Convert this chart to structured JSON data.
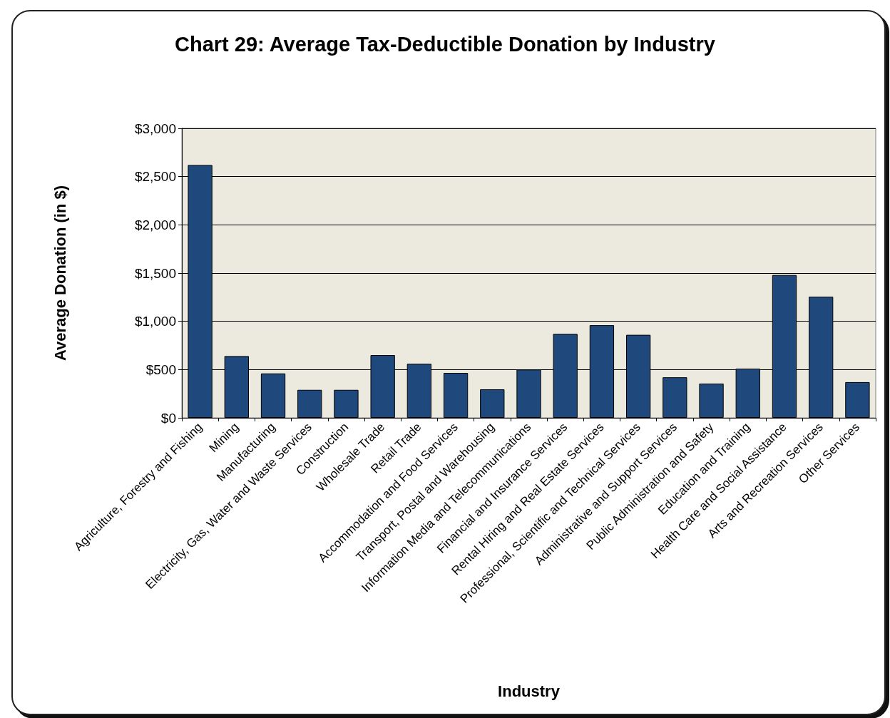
{
  "chart_data": {
    "type": "bar",
    "title": "Chart 29: Average Tax-Deductible Donation by Industry",
    "xlabel": "Industry",
    "ylabel": "Average Donation (in $)",
    "categories": [
      "Agriculture, Forestry and Fishing",
      "Mining",
      "Manufacturing",
      "Electricity, Gas, Water and Waste Services",
      "Construction",
      "Wholesale Trade",
      "Retail Trade",
      "Accommodation and Food Services",
      "Transport, Postal and Warehousing",
      "Information Media and Telecommunications",
      "Financial and Insurance Services",
      "Rental Hiring and Real Estate Services",
      "Professional, Scientific and Technical Services",
      "Administrative and Support Services",
      "Public Administration and Safety",
      "Education and Training",
      "Health Care and Social Assistance",
      "Arts and Recreation Services",
      "Other Services"
    ],
    "values": [
      2620,
      640,
      460,
      290,
      290,
      650,
      560,
      465,
      295,
      500,
      870,
      960,
      860,
      420,
      355,
      510,
      1480,
      1255,
      370
    ],
    "color": "#1f497d",
    "ylim": [
      0,
      3000
    ],
    "yticks": [
      {
        "value": 0,
        "label": "$0"
      },
      {
        "value": 500,
        "label": "$500"
      },
      {
        "value": 1000,
        "label": "$1,000"
      },
      {
        "value": 1500,
        "label": "$1,500"
      },
      {
        "value": 2000,
        "label": "$2,000"
      },
      {
        "value": 2500,
        "label": "$2,500"
      },
      {
        "value": 3000,
        "label": "$3,000"
      }
    ],
    "grid": "y"
  }
}
